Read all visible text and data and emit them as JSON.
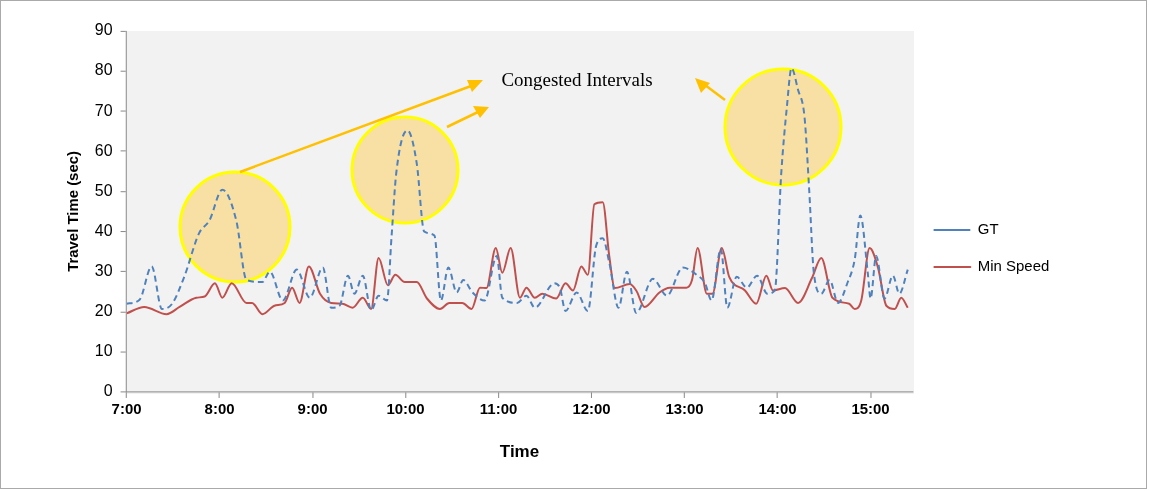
{
  "chart_data": {
    "type": "line",
    "xlabel": "Time",
    "ylabel": "Travel Time (sec)",
    "annotations": [
      "Congested Intervals"
    ],
    "xlim": [
      7,
      15.45
    ],
    "xticks": [
      {
        "value": 7,
        "label": "7:00"
      },
      {
        "value": 8,
        "label": "8:00"
      },
      {
        "value": 9,
        "label": "9:00"
      },
      {
        "value": 10,
        "label": "10:00"
      },
      {
        "value": 11,
        "label": "11:00"
      },
      {
        "value": 12,
        "label": "12:00"
      },
      {
        "value": 13,
        "label": "13:00"
      },
      {
        "value": 14,
        "label": "14:00"
      },
      {
        "value": 15,
        "label": "15:00"
      }
    ],
    "ylim": [
      0,
      90
    ],
    "yticks": [
      0,
      10,
      20,
      30,
      40,
      50,
      60,
      70,
      80,
      90
    ],
    "grid": false,
    "legend": "right",
    "marker": "none",
    "series": [
      {
        "name": "GT",
        "color": "#4f81bd",
        "line_style": "dashed",
        "x": [
          7.0,
          7.14,
          7.27,
          7.38,
          7.49,
          7.62,
          7.78,
          7.89,
          8.03,
          8.18,
          8.29,
          8.46,
          8.54,
          8.68,
          8.83,
          8.97,
          9.11,
          9.2,
          9.29,
          9.38,
          9.45,
          9.54,
          9.63,
          9.71,
          9.8,
          9.85,
          9.9,
          10.02,
          10.12,
          10.2,
          10.31,
          10.38,
          10.46,
          10.55,
          10.62,
          10.72,
          10.85,
          10.98,
          11.04,
          11.2,
          11.3,
          11.39,
          11.6,
          11.66,
          11.72,
          11.84,
          11.96,
          12.05,
          12.12,
          12.19,
          12.29,
          12.38,
          12.48,
          12.66,
          12.81,
          12.98,
          13.13,
          13.22,
          13.29,
          13.39,
          13.46,
          13.56,
          13.67,
          13.78,
          13.89,
          13.97,
          14.04,
          14.1,
          14.15,
          14.22,
          14.29,
          14.34,
          14.39,
          14.47,
          14.56,
          14.65,
          14.75,
          14.83,
          14.89,
          14.97,
          15.0,
          15.06,
          15.15,
          15.24,
          15.31,
          15.4
        ],
        "values": [
          22,
          23,
          31.3,
          20.7,
          22,
          28.7,
          39.6,
          42.7,
          50.4,
          42.7,
          27.9,
          27.4,
          30,
          22.8,
          30.5,
          23.5,
          31,
          21,
          21.5,
          29,
          24.5,
          29,
          20.4,
          24,
          22.8,
          39,
          54.6,
          65.2,
          57,
          40,
          39,
          22.8,
          31,
          24.8,
          27.9,
          24.8,
          22.8,
          33.9,
          23.5,
          22.2,
          24,
          21,
          27.1,
          25.9,
          20.2,
          24.8,
          20.2,
          36.5,
          38.3,
          32.3,
          21,
          30,
          19.7,
          28.2,
          24,
          31,
          29.2,
          27.1,
          22.8,
          35.7,
          21,
          28.7,
          26,
          29,
          24.5,
          25.3,
          54.6,
          71,
          80.7,
          75.3,
          68.5,
          50.4,
          29.7,
          24.5,
          27.9,
          22.2,
          27.1,
          33.1,
          44,
          29.7,
          23.3,
          33.9,
          23.3,
          29,
          24.5,
          30.5
        ]
      },
      {
        "name": "Min Speed",
        "color": "#c0504d",
        "line_style": "solid",
        "x": [
          7.0,
          7.19,
          7.43,
          7.57,
          7.75,
          7.84,
          7.95,
          8.03,
          8.13,
          8.29,
          8.35,
          8.46,
          8.59,
          8.7,
          8.78,
          8.86,
          8.96,
          9.08,
          9.2,
          9.32,
          9.43,
          9.54,
          9.63,
          9.71,
          9.81,
          9.89,
          9.99,
          10.12,
          10.23,
          10.37,
          10.47,
          10.61,
          10.71,
          10.8,
          10.87,
          10.97,
          11.04,
          11.13,
          11.23,
          11.3,
          11.39,
          11.47,
          11.62,
          11.72,
          11.8,
          11.89,
          11.96,
          12.03,
          12.12,
          12.19,
          12.25,
          12.41,
          12.48,
          12.57,
          12.73,
          12.84,
          13.02,
          13.08,
          13.14,
          13.24,
          13.3,
          13.4,
          13.48,
          13.65,
          13.77,
          13.88,
          13.95,
          14.08,
          14.22,
          14.37,
          14.47,
          14.59,
          14.77,
          14.83,
          14.9,
          14.99,
          15.08,
          15.17,
          15.26,
          15.33,
          15.4
        ],
        "values": [
          19.6,
          21.2,
          19.4,
          21.2,
          23.5,
          23.8,
          27.1,
          23.5,
          27.1,
          22.2,
          22.2,
          19.4,
          21.5,
          22.2,
          26,
          22.2,
          31.3,
          24.5,
          22.2,
          22,
          21,
          23.5,
          20.7,
          33.4,
          26.6,
          29.2,
          27.4,
          27.4,
          23.3,
          20.7,
          22.2,
          22.2,
          20.7,
          26,
          25.9,
          35.9,
          29.7,
          35.9,
          23.5,
          26,
          23.5,
          24.5,
          23.3,
          27.1,
          25.3,
          31.3,
          29.2,
          46.8,
          47.3,
          33.9,
          25.9,
          26.9,
          25.3,
          21.2,
          24.8,
          26,
          26,
          27.9,
          35.9,
          24.5,
          24.5,
          35.9,
          28.7,
          25.3,
          22,
          29,
          25.3,
          25.9,
          22.2,
          28.4,
          33.4,
          23.5,
          22,
          20.7,
          22.8,
          35.9,
          31,
          21.5,
          20.7,
          23.5,
          21
        ]
      }
    ]
  }
}
